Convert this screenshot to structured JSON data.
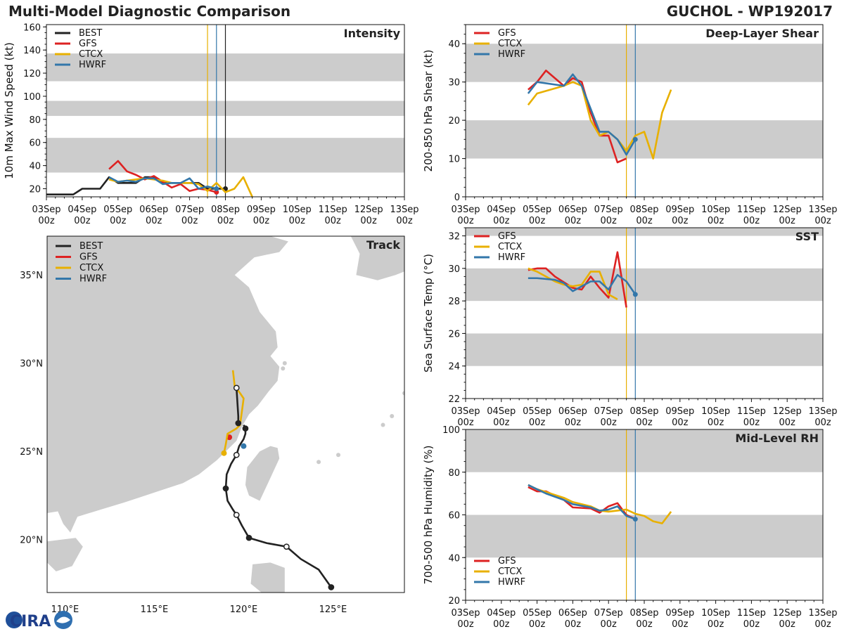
{
  "header": {
    "title": "Multi-Model Diagnostic Comparison",
    "storm": "GUCHOL - WP192017"
  },
  "colors": {
    "BEST": "#222222",
    "GFS": "#dd2222",
    "CTCX": "#e8b000",
    "HWRF": "#3377aa",
    "band": "#cccccc",
    "land": "#cccccc"
  },
  "time_ticks": [
    "03Sep\n00z",
    "04Sep\n00z",
    "05Sep\n00z",
    "06Sep\n00z",
    "07Sep\n00z",
    "08Sep\n00z",
    "09Sep\n00z",
    "10Sep\n00z",
    "11Sep\n00z",
    "12Sep\n00z",
    "13Sep\n00z"
  ],
  "logo": {
    "text": "CIRA",
    "icon": "cira-logo-icon"
  },
  "chart_data": [
    {
      "id": "intensity",
      "type": "line",
      "title": "Intensity",
      "ylabel": "10m Max Wind Speed (kt)",
      "xlabel": "",
      "xlim": [
        0,
        10
      ],
      "ylim": [
        13,
        162
      ],
      "yticks": [
        20,
        40,
        60,
        80,
        100,
        120,
        140,
        160
      ],
      "bands": [
        [
          34,
          64
        ],
        [
          83,
          96
        ],
        [
          113,
          137
        ]
      ],
      "vlines": [
        {
          "x": 4.5,
          "color": "CTCX"
        },
        {
          "x": 4.75,
          "color": "HWRF"
        },
        {
          "x": 5.0,
          "color": "BEST"
        }
      ],
      "legend": [
        "BEST",
        "GFS",
        "CTCX",
        "HWRF"
      ],
      "series": [
        {
          "name": "BEST",
          "x": [
            0,
            0.75,
            1.0,
            1.5,
            1.75,
            2.0,
            2.5,
            2.75,
            3.0,
            3.25,
            3.5,
            4.0,
            4.25,
            4.5,
            4.75,
            5.0
          ],
          "y": [
            15,
            15,
            20,
            20,
            30,
            25,
            25,
            30,
            30,
            25,
            25,
            25,
            25,
            20,
            20,
            20
          ],
          "endpoint": true
        },
        {
          "name": "GFS",
          "x": [
            1.75,
            2.0,
            2.25,
            2.5,
            2.75,
            3.0,
            3.25,
            3.5,
            3.75,
            4.0,
            4.25,
            4.5,
            4.75
          ],
          "y": [
            37,
            44,
            35,
            32,
            28,
            31,
            26,
            21,
            24,
            18,
            20,
            19,
            17
          ],
          "endpoint": true
        },
        {
          "name": "CTCX",
          "x": [
            1.75,
            2.0,
            2.5,
            2.75,
            3.0,
            3.25,
            3.5,
            3.75,
            4.0,
            4.25,
            4.5,
            4.75,
            5.0,
            5.25,
            5.5,
            5.75
          ],
          "y": [
            28,
            26,
            28,
            29,
            28,
            27,
            25,
            25,
            25,
            24,
            18,
            25,
            17,
            20,
            30,
            13
          ]
        },
        {
          "name": "HWRF",
          "x": [
            1.75,
            2.0,
            2.25,
            2.5,
            2.75,
            3.0,
            3.25,
            3.5,
            3.75,
            4.0,
            4.25,
            4.5,
            4.75
          ],
          "y": [
            30,
            26,
            27,
            26,
            29,
            29,
            24,
            25,
            25,
            29,
            20,
            22,
            20
          ],
          "endpoint": true
        }
      ]
    },
    {
      "id": "shear",
      "type": "line",
      "title": "Deep-Layer Shear",
      "ylabel": "200-850 hPa Shear (kt)",
      "xlabel": "",
      "xlim": [
        0,
        10
      ],
      "ylim": [
        0,
        45
      ],
      "yticks": [
        0,
        10,
        20,
        30,
        40
      ],
      "bands": [
        [
          10,
          20
        ],
        [
          30,
          40
        ]
      ],
      "vlines": [
        {
          "x": 4.5,
          "color": "CTCX"
        },
        {
          "x": 4.75,
          "color": "HWRF"
        }
      ],
      "legend": [
        "GFS",
        "CTCX",
        "HWRF"
      ],
      "series": [
        {
          "name": "GFS",
          "x": [
            1.75,
            2.0,
            2.25,
            2.75,
            3.0,
            3.25,
            3.5,
            3.75,
            4.0,
            4.25,
            4.5
          ],
          "y": [
            28,
            30,
            33,
            29,
            31,
            30,
            22,
            16,
            16,
            9,
            10
          ]
        },
        {
          "name": "CTCX",
          "x": [
            1.75,
            2.0,
            2.75,
            3.0,
            3.25,
            3.5,
            3.75,
            4.0,
            4.25,
            4.5,
            4.75,
            5.0,
            5.25,
            5.5,
            5.75
          ],
          "y": [
            24,
            27,
            29,
            30,
            29,
            20,
            16,
            17,
            15,
            12,
            16,
            17,
            10,
            22,
            28
          ]
        },
        {
          "name": "HWRF",
          "x": [
            1.75,
            2.0,
            2.75,
            3.0,
            3.25,
            3.5,
            3.75,
            4.0,
            4.25,
            4.5,
            4.75
          ],
          "y": [
            27,
            30,
            29,
            32,
            29,
            23,
            17,
            17,
            15,
            11,
            15
          ],
          "endpoint": true
        }
      ]
    },
    {
      "id": "sst",
      "type": "line",
      "title": "SST",
      "ylabel": "Sea Surface Temp (°C)",
      "xlabel": "",
      "xlim": [
        0,
        10
      ],
      "ylim": [
        22,
        32.5
      ],
      "yticks": [
        22,
        24,
        26,
        28,
        30,
        32
      ],
      "bands": [
        [
          24,
          26
        ],
        [
          28,
          30
        ],
        [
          32,
          34
        ]
      ],
      "vlines": [
        {
          "x": 4.5,
          "color": "CTCX"
        },
        {
          "x": 4.75,
          "color": "HWRF"
        }
      ],
      "legend": [
        "GFS",
        "CTCX",
        "HWRF"
      ],
      "series": [
        {
          "name": "GFS",
          "x": [
            1.75,
            2.0,
            2.25,
            2.5,
            3.0,
            3.25,
            3.5,
            3.75,
            4.0,
            4.25,
            4.5
          ],
          "y": [
            29.9,
            30.0,
            30.0,
            29.5,
            28.8,
            28.7,
            29.5,
            28.8,
            28.2,
            31.0,
            27.6
          ]
        },
        {
          "name": "CTCX",
          "x": [
            1.75,
            2.0,
            2.5,
            2.75,
            3.0,
            3.25,
            3.5,
            3.75,
            4.0,
            4.25
          ],
          "y": [
            30.0,
            29.8,
            29.2,
            29.0,
            28.9,
            29.0,
            29.8,
            29.8,
            28.4,
            28.1
          ]
        },
        {
          "name": "HWRF",
          "x": [
            1.75,
            2.0,
            2.5,
            2.75,
            3.0,
            3.25,
            3.5,
            3.75,
            4.0,
            4.25,
            4.5,
            4.75
          ],
          "y": [
            29.4,
            29.4,
            29.3,
            29.1,
            28.6,
            28.9,
            29.2,
            29.2,
            28.7,
            29.6,
            29.2,
            28.4
          ],
          "endpoint": true
        }
      ]
    },
    {
      "id": "rh",
      "type": "line",
      "title": "Mid-Level RH",
      "ylabel": "700-500 hPa Humidity (%)",
      "xlabel": "",
      "xlim": [
        0,
        10
      ],
      "ylim": [
        20,
        100
      ],
      "yticks": [
        20,
        40,
        60,
        80,
        100
      ],
      "bands": [
        [
          40,
          60
        ],
        [
          80,
          100
        ]
      ],
      "vlines": [
        {
          "x": 4.5,
          "color": "CTCX"
        },
        {
          "x": 4.75,
          "color": "HWRF"
        }
      ],
      "legend": [
        "GFS",
        "CTCX",
        "HWRF"
      ],
      "series": [
        {
          "name": "GFS",
          "x": [
            1.75,
            2.0,
            2.25,
            2.75,
            3.0,
            3.5,
            3.75,
            4.0,
            4.25,
            4.5,
            4.75
          ],
          "y": [
            73,
            71,
            71,
            67,
            63.5,
            63,
            61,
            64,
            65.5,
            60,
            58
          ]
        },
        {
          "name": "CTCX",
          "x": [
            1.75,
            2.0,
            2.75,
            3.0,
            3.5,
            3.75,
            4.0,
            4.25,
            4.5,
            4.75,
            5.0,
            5.25,
            5.5,
            5.75
          ],
          "y": [
            74,
            72,
            68,
            66,
            64,
            62,
            61.5,
            62,
            62.5,
            60.5,
            59.5,
            57,
            56,
            61.5
          ]
        },
        {
          "name": "HWRF",
          "x": [
            1.75,
            2.0,
            2.25,
            2.75,
            3.0,
            3.5,
            3.75,
            4.0,
            4.25,
            4.5,
            4.75
          ],
          "y": [
            74,
            72,
            70,
            67,
            65,
            63.5,
            62,
            62.5,
            64,
            59.5,
            58
          ],
          "endpoint": true
        }
      ]
    },
    {
      "id": "track",
      "type": "map",
      "title": "Track",
      "xlim": [
        109,
        129
      ],
      "ylim": [
        17,
        37.2
      ],
      "lon_ticks": [
        110,
        115,
        120,
        125
      ],
      "lon_labels": [
        "110°E",
        "115°E",
        "120°E",
        "125°E"
      ],
      "lat_ticks": [
        20,
        25,
        30,
        35
      ],
      "lat_labels": [
        "20°N",
        "25°N",
        "30°N",
        "35°N"
      ],
      "legend": [
        "BEST",
        "GFS",
        "CTCX",
        "HWRF"
      ],
      "series": [
        {
          "name": "BEST",
          "lon": [
            124.9,
            124.2,
            123.2,
            122.4,
            121.3,
            120.3,
            119.9,
            119.6,
            119.4,
            119.1,
            119.0,
            119.05,
            119.3,
            119.6,
            119.75,
            120.0,
            120.1,
            120.1,
            120.0
          ],
          "lat": [
            17.3,
            18.3,
            18.9,
            19.6,
            19.8,
            20.1,
            20.8,
            21.4,
            21.7,
            22.2,
            22.9,
            23.7,
            24.3,
            24.8,
            25.3,
            25.7,
            26.0,
            26.3,
            26.5
          ],
          "markers": [
            {
              "lon": 124.9,
              "lat": 17.3,
              "fill": "filled"
            },
            {
              "lon": 122.4,
              "lat": 19.6,
              "fill": "open"
            },
            {
              "lon": 120.3,
              "lat": 20.1,
              "fill": "filled"
            },
            {
              "lon": 119.6,
              "lat": 21.4,
              "fill": "open"
            },
            {
              "lon": 119.0,
              "lat": 22.9,
              "fill": "filled"
            },
            {
              "lon": 119.6,
              "lat": 24.8,
              "fill": "open"
            },
            {
              "lon": 120.1,
              "lat": 26.3,
              "fill": "filled"
            }
          ]
        },
        {
          "name": "GFS",
          "lon": [
            119.2
          ],
          "lat": [
            25.8
          ]
        },
        {
          "name": "CTCX",
          "lon": [
            118.9,
            119.0,
            119.1,
            119.6,
            119.8,
            120.0,
            119.8,
            119.5,
            119.4
          ],
          "lat": [
            24.9,
            25.4,
            26.0,
            26.3,
            26.5,
            28.0,
            28.3,
            28.7,
            29.6
          ],
          "endpoint_lon": 118.9,
          "endpoint_lat": 24.9
        },
        {
          "name": "HWRF",
          "lon": [
            120.0
          ],
          "lat": [
            25.3
          ]
        },
        {
          "name": "BEST_NORTH",
          "lon": [
            119.7,
            119.7,
            119.6
          ],
          "lat": [
            26.6,
            27.0,
            28.6
          ],
          "markers": [
            {
              "lon": 119.6,
              "lat": 28.6,
              "fill": "open"
            },
            {
              "lon": 119.7,
              "lat": 26.6,
              "fill": "filled"
            }
          ]
        }
      ]
    }
  ]
}
